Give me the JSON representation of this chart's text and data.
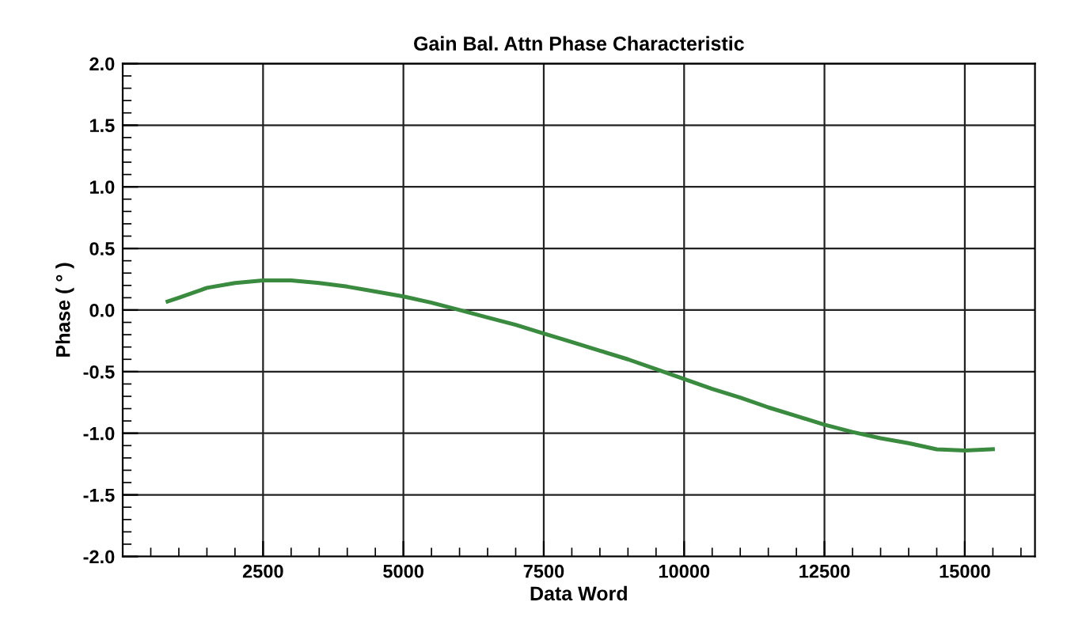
{
  "chart_data": {
    "type": "line",
    "title": "Gain Bal. Attn Phase Characteristic",
    "xlabel": "Data Word",
    "ylabel": "Phase ( ° )",
    "x": [
      800,
      1000,
      1500,
      2000,
      2500,
      3000,
      3500,
      4000,
      4500,
      5000,
      5500,
      6000,
      6500,
      7000,
      7500,
      8000,
      8500,
      9000,
      9500,
      10000,
      10500,
      11000,
      11500,
      12000,
      12500,
      13000,
      13500,
      14000,
      14500,
      15000,
      15500
    ],
    "series": [
      {
        "color": "#3a8a3f",
        "values": [
          0.07,
          0.1,
          0.18,
          0.22,
          0.24,
          0.24,
          0.22,
          0.19,
          0.15,
          0.11,
          0.06,
          0.0,
          -0.06,
          -0.12,
          -0.19,
          -0.26,
          -0.33,
          -0.4,
          -0.48,
          -0.56,
          -0.64,
          -0.71,
          -0.79,
          -0.86,
          -0.93,
          -0.99,
          -1.04,
          -1.08,
          -1.13,
          -1.14,
          -1.13
        ]
      }
    ],
    "xlim": [
      0,
      16250
    ],
    "xticks": [
      2500,
      5000,
      7500,
      10000,
      12500,
      15000
    ],
    "ylim": [
      -2.0,
      2.0
    ],
    "yticks": [
      {
        "value": -2.0,
        "label": "-2.0"
      },
      {
        "value": -1.5,
        "label": "-1.5"
      },
      {
        "value": -1.0,
        "label": "-1.0"
      },
      {
        "value": -0.5,
        "label": "-0.5"
      },
      {
        "value": 0.0,
        "label": "0.0"
      },
      {
        "value": 0.5,
        "label": "0.5"
      },
      {
        "value": 1.0,
        "label": "1.0"
      },
      {
        "value": 1.5,
        "label": "1.5"
      },
      {
        "value": 2.0,
        "label": "2.0"
      }
    ],
    "grid": true,
    "marker": "none",
    "line_style": "solid"
  }
}
